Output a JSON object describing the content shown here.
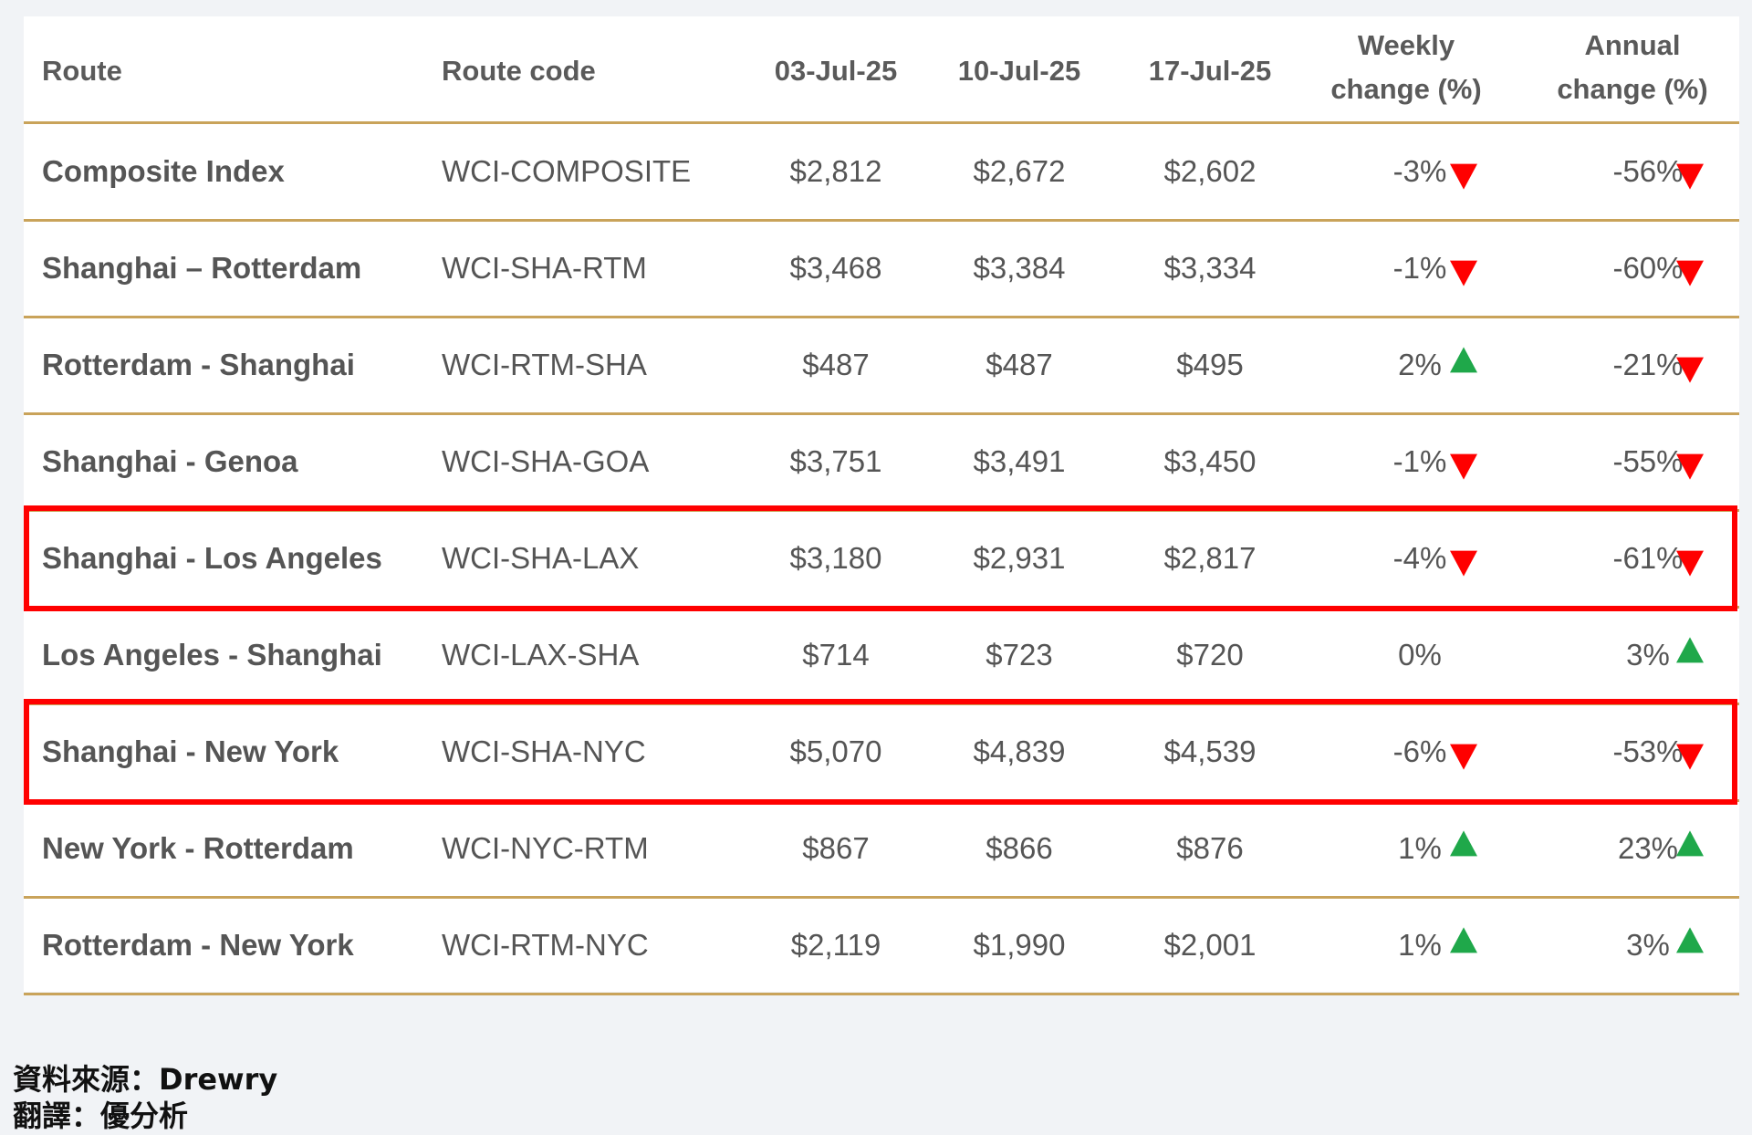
{
  "chart_data": {
    "type": "table",
    "columns": [
      "Route",
      "Route code",
      "03-Jul-25",
      "10-Jul-25",
      "17-Jul-25",
      "Weekly change (%)",
      "Annual change (%)"
    ],
    "header": {
      "route": "Route",
      "code": "Route code",
      "d1": "03-Jul-25",
      "d2": "10-Jul-25",
      "d3": "17-Jul-25",
      "weekly_line1": "Weekly",
      "weekly_line2": "change (%)",
      "annual_line1": "Annual",
      "annual_line2": "change (%)"
    },
    "rows": [
      {
        "route": "Composite Index",
        "code": "WCI-COMPOSITE",
        "d1": "$2,812",
        "d2": "$2,672",
        "d3": "$2,602",
        "weekly": "-3%",
        "weekly_dir": "down",
        "annual": "-56%",
        "annual_dir": "down",
        "highlighted": false
      },
      {
        "route": "Shanghai – Rotterdam",
        "code": "WCI-SHA-RTM",
        "d1": "$3,468",
        "d2": "$3,384",
        "d3": "$3,334",
        "weekly": "-1%",
        "weekly_dir": "down",
        "annual": "-60%",
        "annual_dir": "down",
        "highlighted": false
      },
      {
        "route": "Rotterdam - Shanghai",
        "code": "WCI-RTM-SHA",
        "d1": "$487",
        "d2": "$487",
        "d3": "$495",
        "weekly": "2%",
        "weekly_dir": "up",
        "annual": "-21%",
        "annual_dir": "down",
        "highlighted": false
      },
      {
        "route": "Shanghai - Genoa",
        "code": "WCI-SHA-GOA",
        "d1": "$3,751",
        "d2": "$3,491",
        "d3": "$3,450",
        "weekly": "-1%",
        "weekly_dir": "down",
        "annual": "-55%",
        "annual_dir": "down",
        "highlighted": false
      },
      {
        "route": "Shanghai - Los Angeles",
        "code": "WCI-SHA-LAX",
        "d1": "$3,180",
        "d2": "$2,931",
        "d3": "$2,817",
        "weekly": "-4%",
        "weekly_dir": "down",
        "annual": "-61%",
        "annual_dir": "down",
        "highlighted": true
      },
      {
        "route": "Los Angeles - Shanghai",
        "code": "WCI-LAX-SHA",
        "d1": "$714",
        "d2": "$723",
        "d3": "$720",
        "weekly": "0%",
        "weekly_dir": "none",
        "annual": "3%",
        "annual_dir": "up",
        "highlighted": false
      },
      {
        "route": "Shanghai - New York",
        "code": "WCI-SHA-NYC",
        "d1": "$5,070",
        "d2": "$4,839",
        "d3": "$4,539",
        "weekly": "-6%",
        "weekly_dir": "down",
        "annual": "-53%",
        "annual_dir": "down",
        "highlighted": true
      },
      {
        "route": "New York - Rotterdam",
        "code": "WCI-NYC-RTM",
        "d1": "$867",
        "d2": "$866",
        "d3": "$876",
        "weekly": "1%",
        "weekly_dir": "up",
        "annual": "23%",
        "annual_dir": "up",
        "highlighted": false
      },
      {
        "route": "Rotterdam - New York",
        "code": "WCI-RTM-NYC",
        "d1": "$2,119",
        "d2": "$1,990",
        "d3": "$2,001",
        "weekly": "1%",
        "weekly_dir": "up",
        "annual": "3%",
        "annual_dir": "up",
        "highlighted": false
      }
    ]
  },
  "colors": {
    "down_arrow": "#ff0000",
    "up_arrow": "#1fa84a",
    "divider": "#c9a35a",
    "highlight_box": "#ff0000"
  },
  "footer": {
    "source": "資料來源：Drewry",
    "translation": "翻譯：優分析"
  }
}
